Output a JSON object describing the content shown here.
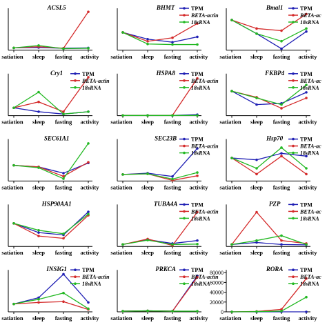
{
  "x_categories": [
    "satiation",
    "sleep",
    "fasting",
    "activity"
  ],
  "colors": {
    "TPM": "#1f1fb4",
    "BETA-actin": "#d42a2a",
    "18sRNA": "#22b822"
  },
  "chart_data": [
    {
      "type": "line",
      "title": "ACSL5",
      "categories": [
        "satiation",
        "sleep",
        "fasting",
        "activity"
      ],
      "ylim": [
        0,
        1
      ],
      "yticks": [],
      "legend": [],
      "series": [
        {
          "name": "TPM",
          "values": [
            0.06,
            0.07,
            0.05,
            0.06
          ]
        },
        {
          "name": "BETA-actin",
          "values": [
            0.06,
            0.09,
            0.05,
            0.98
          ]
        },
        {
          "name": "18sRNA",
          "values": [
            0.06,
            0.12,
            0.04,
            0.05
          ]
        }
      ]
    },
    {
      "type": "line",
      "title": "BHMT",
      "categories": [
        "satiation",
        "sleep",
        "fasting",
        "activity"
      ],
      "ylim": [
        0,
        2.2
      ],
      "yticks": [],
      "legend": [
        "TPM",
        "BETA-actin",
        "18sRNA"
      ],
      "series": [
        {
          "name": "TPM",
          "values": [
            1.0,
            0.62,
            0.45,
            0.75
          ]
        },
        {
          "name": "BETA-actin",
          "values": [
            1.0,
            0.5,
            0.7,
            1.5
          ]
        },
        {
          "name": "18sRNA",
          "values": [
            1.0,
            0.35,
            0.32,
            0.32
          ]
        }
      ]
    },
    {
      "type": "line",
      "title": "Bmal1",
      "categories": [
        "satiation",
        "sleep",
        "fasting",
        "activity"
      ],
      "ylim": [
        0,
        1.3
      ],
      "yticks": [],
      "legend": [
        "TPM",
        "BETA-ac",
        "18sRNA"
      ],
      "series": [
        {
          "name": "TPM",
          "values": [
            1.0,
            0.55,
            0.05,
            0.62
          ]
        },
        {
          "name": "BETA-actin",
          "values": [
            1.0,
            0.72,
            0.65,
            1.2
          ]
        },
        {
          "name": "18sRNA",
          "values": [
            1.0,
            0.55,
            0.3,
            0.72
          ]
        }
      ]
    },
    {
      "type": "line",
      "title": "Cry1",
      "categories": [
        "satiation",
        "sleep",
        "fasting",
        "activity"
      ],
      "ylim": [
        0,
        1
      ],
      "yticks": [],
      "legend": [
        "TPM",
        "BETA-actin",
        "18sRNA"
      ],
      "series": [
        {
          "name": "TPM",
          "values": [
            0.2,
            0.1,
            0.04,
            0.1
          ]
        },
        {
          "name": "BETA-actin",
          "values": [
            0.2,
            0.35,
            0.1,
            0.98
          ]
        },
        {
          "name": "18sRNA",
          "values": [
            0.2,
            0.6,
            0.04,
            0.1
          ]
        }
      ]
    },
    {
      "type": "line",
      "title": "HSPA8",
      "categories": [
        "satiation",
        "sleep",
        "fasting",
        "activity"
      ],
      "ylim": [
        0,
        200
      ],
      "yticks": [],
      "legend": [
        "TPM",
        "BETA-actin",
        "18sRNA"
      ],
      "series": [
        {
          "name": "TPM",
          "values": [
            1,
            1.5,
            1,
            5
          ]
        },
        {
          "name": "BETA-actin",
          "values": [
            1,
            1,
            1.5,
            190
          ]
        },
        {
          "name": "18sRNA",
          "values": [
            1,
            1,
            1,
            1
          ]
        }
      ]
    },
    {
      "type": "line",
      "title": "FKBP4",
      "categories": [
        "satiation",
        "sleep",
        "fasting",
        "activity"
      ],
      "ylim": [
        0,
        1.6
      ],
      "yticks": [],
      "legend": [
        "TPM",
        "BETA-ac",
        "18sRNA"
      ],
      "series": [
        {
          "name": "TPM",
          "values": [
            1.0,
            0.45,
            0.5,
            0.95
          ]
        },
        {
          "name": "BETA-actin",
          "values": [
            1.0,
            0.75,
            0.3,
            0.72
          ]
        },
        {
          "name": "18sRNA",
          "values": [
            1.0,
            0.72,
            0.45,
            1.25
          ]
        }
      ]
    },
    {
      "type": "line",
      "title": "SEC61A1",
      "categories": [
        "satiation",
        "sleep",
        "fasting",
        "activity"
      ],
      "ylim": [
        0,
        2.5
      ],
      "yticks": [],
      "legend": [],
      "series": [
        {
          "name": "TPM",
          "values": [
            1.0,
            0.9,
            0.5,
            1.15
          ]
        },
        {
          "name": "BETA-actin",
          "values": [
            1.0,
            0.9,
            0.3,
            1.2
          ]
        },
        {
          "name": "18sRNA",
          "values": [
            1.0,
            0.85,
            0.15,
            2.4
          ]
        }
      ]
    },
    {
      "type": "line",
      "title": "SEC23B",
      "categories": [
        "satiation",
        "sleep",
        "fasting",
        "activity"
      ],
      "ylim": [
        0,
        6
      ],
      "yticks": [],
      "legend": [
        "TPM",
        "BETA-actin",
        "18sRNA"
      ],
      "series": [
        {
          "name": "TPM",
          "values": [
            1.0,
            1.2,
            0.7,
            5.0
          ]
        },
        {
          "name": "BETA-actin",
          "values": [
            1.0,
            1.1,
            0.1,
            0.8
          ]
        },
        {
          "name": "18sRNA",
          "values": [
            1.0,
            1.1,
            0.3,
            1.3
          ]
        }
      ]
    },
    {
      "type": "line",
      "title": "Hsp70",
      "categories": [
        "satiation",
        "sleep",
        "fasting",
        "activity"
      ],
      "ylim": [
        0,
        1.7
      ],
      "yticks": [],
      "legend": [
        "TPM",
        "BETA-ac",
        "18sRNA"
      ],
      "series": [
        {
          "name": "TPM",
          "values": [
            1.0,
            0.92,
            1.2,
            1.08
          ]
        },
        {
          "name": "BETA-actin",
          "values": [
            1.0,
            0.3,
            1.08,
            0.3
          ]
        },
        {
          "name": "18sRNA",
          "values": [
            1.0,
            0.55,
            1.45,
            0.55
          ]
        }
      ]
    },
    {
      "type": "line",
      "title": "HSP90AA1",
      "categories": [
        "satiation",
        "sleep",
        "fasting",
        "activity"
      ],
      "ylim": [
        0,
        1.7
      ],
      "yticks": [],
      "legend": [],
      "series": [
        {
          "name": "TPM",
          "values": [
            1.0,
            0.6,
            0.5,
            1.5
          ]
        },
        {
          "name": "BETA-actin",
          "values": [
            1.0,
            0.45,
            0.35,
            1.35
          ]
        },
        {
          "name": "18sRNA",
          "values": [
            1.0,
            0.7,
            0.55,
            1.4
          ]
        }
      ]
    },
    {
      "type": "line",
      "title": "TUBA4A",
      "categories": [
        "satiation",
        "sleep",
        "fasting",
        "activity"
      ],
      "ylim": [
        0,
        20
      ],
      "yticks": [],
      "legend": [
        "TPM",
        "BETA-actin",
        "18sRNA"
      ],
      "series": [
        {
          "name": "TPM",
          "values": [
            1.0,
            3.5,
            1.5,
            3.0
          ]
        },
        {
          "name": "BETA-actin",
          "values": [
            1.0,
            3.8,
            0.5,
            17.5
          ]
        },
        {
          "name": "18sRNA",
          "values": [
            1.0,
            3.2,
            1.0,
            1.2
          ]
        }
      ]
    },
    {
      "type": "line",
      "title": "PZP",
      "categories": [
        "satiation",
        "sleep",
        "fasting",
        "activity"
      ],
      "ylim": [
        0,
        20
      ],
      "yticks": [],
      "legend": [
        "TPM",
        "BETA-ac",
        "18sRNA"
      ],
      "series": [
        {
          "name": "TPM",
          "values": [
            1.0,
            2.0,
            1.0,
            0.8
          ]
        },
        {
          "name": "BETA-actin",
          "values": [
            1.0,
            17.5,
            3.0,
            1.5
          ]
        },
        {
          "name": "18sRNA",
          "values": [
            1.0,
            3.0,
            5.5,
            1.0
          ]
        }
      ]
    },
    {
      "type": "line",
      "title": "INSIG1",
      "categories": [
        "satiation",
        "sleep",
        "fasting",
        "activity"
      ],
      "ylim": [
        0,
        5
      ],
      "yticks": [],
      "legend": [
        "TPM",
        "BETA-actin",
        "18sRNA"
      ],
      "series": [
        {
          "name": "TPM",
          "values": [
            1.0,
            1.8,
            4.8,
            1.2
          ]
        },
        {
          "name": "BETA-actin",
          "values": [
            1.0,
            1.2,
            1.3,
            0.3
          ]
        },
        {
          "name": "18sRNA",
          "values": [
            1.0,
            1.6,
            2.4,
            0.4
          ]
        }
      ]
    },
    {
      "type": "line",
      "title": "PRKCA",
      "categories": [
        "satiation",
        "sleep",
        "fasting",
        "activity"
      ],
      "ylim": [
        0,
        60
      ],
      "yticks": [],
      "legend": [
        "TPM",
        "BETA-actin",
        "18sRNA"
      ],
      "series": [
        {
          "name": "TPM",
          "values": [
            1,
            1.5,
            1,
            55
          ]
        },
        {
          "name": "BETA-actin",
          "values": [
            1,
            1.5,
            1,
            53
          ]
        },
        {
          "name": "18sRNA",
          "values": [
            1,
            1.5,
            1,
            1
          ]
        }
      ]
    },
    {
      "type": "line",
      "title": "RORA",
      "categories": [
        "satiation",
        "sleep",
        "fasting",
        "activity"
      ],
      "ylim": [
        0,
        80000
      ],
      "yticks": [
        "0",
        "20000",
        "40000",
        "60000",
        "80000"
      ],
      "legend": [
        "TPM",
        "BETA-ac",
        "18sRNA"
      ],
      "series": [
        {
          "name": "TPM",
          "values": [
            1,
            1,
            1,
            1
          ]
        },
        {
          "name": "BETA-actin",
          "values": [
            1,
            800,
            5000,
            68000
          ]
        },
        {
          "name": "18sRNA",
          "values": [
            1,
            500,
            1500,
            30000
          ]
        }
      ]
    }
  ]
}
